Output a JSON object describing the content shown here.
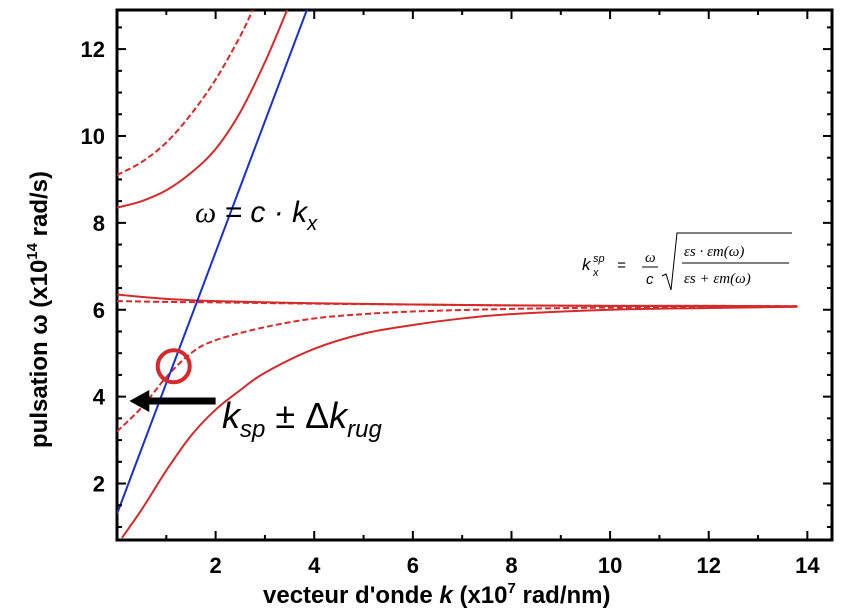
{
  "colors": {
    "dispersion": "#d42a2a",
    "light_line": "#1a2fd0",
    "marker": "#d42a2a",
    "arrow": "#000000"
  },
  "chart_data": {
    "type": "line",
    "title": "",
    "xlabel_text": "vecteur d'onde ",
    "xlabel_var": "k",
    "xlabel_unit_prefix": " (x10",
    "xlabel_unit_exp": "7",
    "xlabel_unit_suffix": " rad/nm)",
    "ylabel_prefix": "pulsation ω (x10",
    "ylabel_exp": "14",
    "ylabel_suffix": " rad/s)",
    "xlim": [
      0,
      14.5
    ],
    "ylim": [
      0.7,
      12.9
    ],
    "x_ticks": [
      2,
      4,
      6,
      8,
      10,
      12,
      14
    ],
    "y_ticks": [
      2,
      4,
      6,
      8,
      10,
      12
    ],
    "grid": false,
    "series": [
      {
        "style": "solid",
        "color": "dispersion",
        "points": [
          [
            0,
            8.35
          ],
          [
            0.5,
            8.5
          ],
          [
            1,
            8.75
          ],
          [
            1.5,
            9.15
          ],
          [
            2,
            9.7
          ],
          [
            2.5,
            10.55
          ],
          [
            3,
            11.7
          ],
          [
            3.45,
            12.9
          ]
        ]
      },
      {
        "style": "dashed",
        "color": "dispersion",
        "points": [
          [
            0,
            9.1
          ],
          [
            0.5,
            9.4
          ],
          [
            1,
            9.85
          ],
          [
            1.5,
            10.5
          ],
          [
            2,
            11.3
          ],
          [
            2.5,
            12.3
          ],
          [
            2.75,
            12.9
          ]
        ]
      },
      {
        "style": "solid",
        "color": "dispersion",
        "points": [
          [
            0,
            6.35
          ],
          [
            1,
            6.25
          ],
          [
            2,
            6.2
          ],
          [
            4,
            6.15
          ],
          [
            6,
            6.12
          ],
          [
            8,
            6.1
          ],
          [
            10,
            6.09
          ],
          [
            12,
            6.09
          ],
          [
            13.8,
            6.08
          ]
        ]
      },
      {
        "style": "dashed",
        "color": "dispersion",
        "points": [
          [
            0,
            6.2
          ],
          [
            1,
            6.18
          ],
          [
            2,
            6.17
          ],
          [
            4,
            6.14
          ],
          [
            6,
            6.12
          ],
          [
            8,
            6.1
          ],
          [
            10,
            6.09
          ],
          [
            12,
            6.09
          ],
          [
            13.8,
            6.08
          ]
        ]
      },
      {
        "style": "dashed",
        "color": "dispersion",
        "points": [
          [
            0,
            3.2
          ],
          [
            0.5,
            3.75
          ],
          [
            1,
            4.45
          ],
          [
            1.5,
            5.0
          ],
          [
            2,
            5.3
          ],
          [
            3,
            5.6
          ],
          [
            4,
            5.8
          ],
          [
            5,
            5.9
          ],
          [
            6,
            5.96
          ],
          [
            8,
            6.02
          ],
          [
            10,
            6.05
          ],
          [
            12,
            6.06
          ],
          [
            13.8,
            6.07
          ]
        ]
      },
      {
        "style": "solid",
        "color": "dispersion",
        "points": [
          [
            0.1,
            0.75
          ],
          [
            0.5,
            1.4
          ],
          [
            1,
            2.3
          ],
          [
            1.5,
            3.1
          ],
          [
            2,
            3.7
          ],
          [
            2.5,
            4.15
          ],
          [
            3,
            4.55
          ],
          [
            4,
            5.1
          ],
          [
            5,
            5.45
          ],
          [
            6,
            5.65
          ],
          [
            7,
            5.8
          ],
          [
            8,
            5.9
          ],
          [
            10,
            6.0
          ],
          [
            12,
            6.04
          ],
          [
            13.8,
            6.07
          ]
        ]
      },
      {
        "style": "solid",
        "color": "light_line",
        "points": [
          [
            0,
            1.3
          ],
          [
            3.85,
            12.9
          ]
        ]
      }
    ],
    "marker": {
      "x": 1.15,
      "y": 4.7
    },
    "arrow": {
      "from_x": 2.0,
      "to_x": 0.25,
      "y": 3.9
    },
    "annotations": {
      "light_line_label": {
        "omega": "ω",
        "eq": " = ",
        "c": "c",
        "dot": " · ",
        "k": "k",
        "sub": "x"
      },
      "ksp_label": {
        "k": "k",
        "sub": "sp",
        "pm": " ± Δ",
        "k2": "k",
        "sub2": "rug"
      },
      "formula": {
        "k": "k",
        "sub": "x",
        "sup": "sp",
        "eq": "=",
        "num": "ω",
        "den": "c",
        "rad_num": "εs · εm(ω)",
        "rad_den": "εs + εm(ω)"
      }
    }
  }
}
